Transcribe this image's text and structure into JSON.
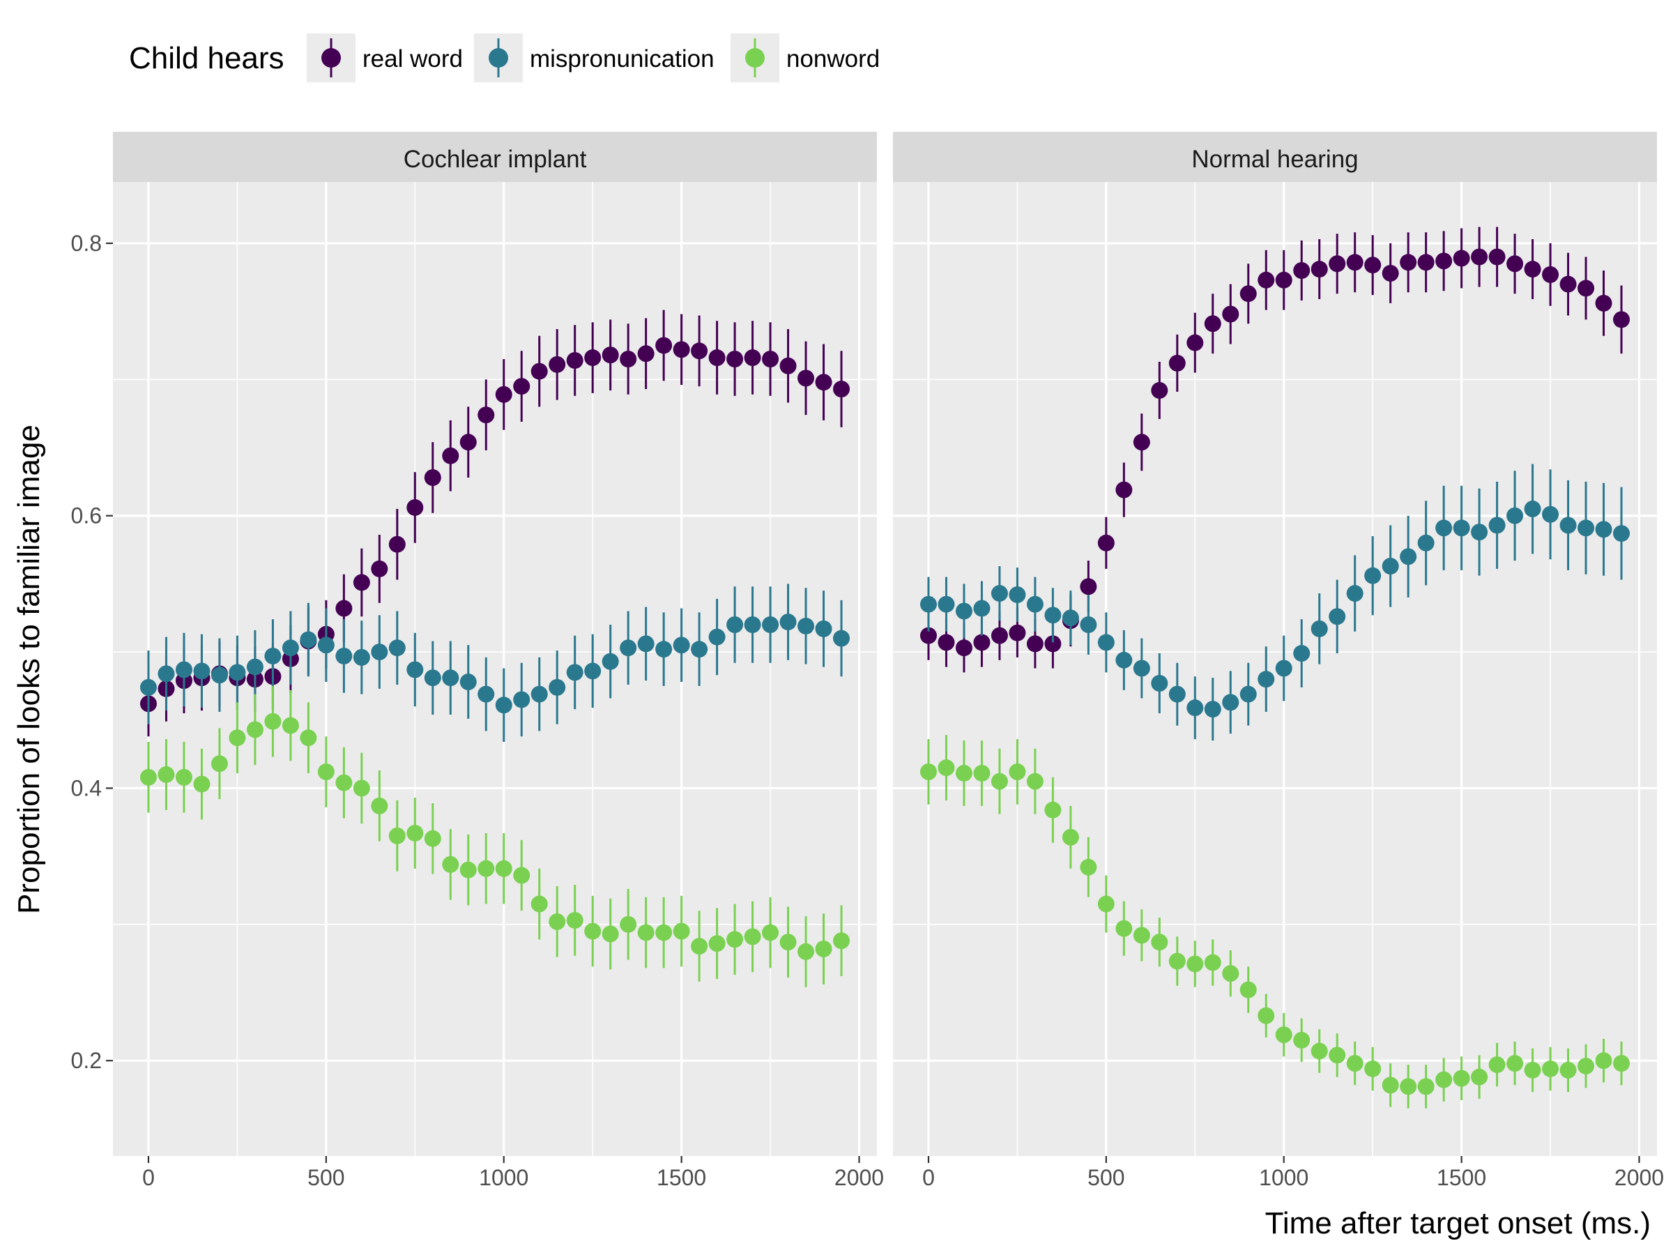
{
  "chart_data": {
    "type": "scatter",
    "ylabel": "Proportion of looks to familiar image",
    "xlabel": "Time after target onset (ms.)",
    "xlim": [
      -100,
      2050
    ],
    "ylim": [
      0.13,
      0.845
    ],
    "x_ticks": [
      0,
      500,
      1000,
      1500,
      2000
    ],
    "y_ticks": [
      0.2,
      0.4,
      0.6,
      0.8
    ],
    "grid": true,
    "legend": {
      "title": "Child hears",
      "placement": "top-left"
    },
    "x": [
      0,
      50,
      100,
      150,
      200,
      250,
      300,
      350,
      400,
      450,
      500,
      550,
      600,
      650,
      700,
      750,
      800,
      850,
      900,
      950,
      1000,
      1050,
      1100,
      1150,
      1200,
      1250,
      1300,
      1350,
      1400,
      1450,
      1500,
      1550,
      1600,
      1650,
      1700,
      1750,
      1800,
      1850,
      1900,
      1950
    ],
    "facets": [
      {
        "label": "Cochlear implant",
        "series": [
          {
            "name": "real word",
            "color": "#440154",
            "y": [
              0.462,
              0.473,
              0.479,
              0.481,
              0.484,
              0.481,
              0.48,
              0.482,
              0.495,
              0.508,
              0.513,
              0.532,
              0.551,
              0.561,
              0.579,
              0.606,
              0.628,
              0.644,
              0.654,
              0.674,
              0.689,
              0.695,
              0.706,
              0.711,
              0.714,
              0.716,
              0.718,
              0.715,
              0.719,
              0.725,
              0.722,
              0.721,
              0.716,
              0.715,
              0.716,
              0.715,
              0.71,
              0.701,
              0.698,
              0.693
            ],
            "err": [
              0.024,
              0.024,
              0.024,
              0.024,
              0.024,
              0.024,
              0.024,
              0.024,
              0.025,
              0.025,
              0.025,
              0.025,
              0.025,
              0.025,
              0.026,
              0.026,
              0.026,
              0.026,
              0.026,
              0.026,
              0.026,
              0.026,
              0.026,
              0.026,
              0.026,
              0.026,
              0.026,
              0.026,
              0.026,
              0.026,
              0.026,
              0.026,
              0.027,
              0.027,
              0.027,
              0.027,
              0.027,
              0.027,
              0.028,
              0.028
            ]
          },
          {
            "name": "mispronunication",
            "color": "#2A788E",
            "y": [
              0.474,
              0.484,
              0.487,
              0.486,
              0.483,
              0.485,
              0.489,
              0.497,
              0.503,
              0.509,
              0.505,
              0.497,
              0.496,
              0.5,
              0.503,
              0.487,
              0.481,
              0.481,
              0.478,
              0.469,
              0.461,
              0.465,
              0.469,
              0.474,
              0.485,
              0.486,
              0.493,
              0.503,
              0.506,
              0.502,
              0.505,
              0.502,
              0.511,
              0.52,
              0.52,
              0.52,
              0.522,
              0.519,
              0.517,
              0.51
            ],
            "err": [
              0.027,
              0.027,
              0.027,
              0.027,
              0.027,
              0.027,
              0.027,
              0.027,
              0.027,
              0.027,
              0.027,
              0.027,
              0.027,
              0.027,
              0.027,
              0.027,
              0.027,
              0.027,
              0.027,
              0.027,
              0.027,
              0.027,
              0.027,
              0.027,
              0.027,
              0.027,
              0.027,
              0.027,
              0.027,
              0.027,
              0.027,
              0.027,
              0.028,
              0.028,
              0.028,
              0.028,
              0.028,
              0.028,
              0.028,
              0.028
            ]
          },
          {
            "name": "nonword",
            "color": "#7AD151",
            "y": [
              0.408,
              0.41,
              0.408,
              0.403,
              0.418,
              0.437,
              0.443,
              0.449,
              0.446,
              0.437,
              0.412,
              0.404,
              0.4,
              0.387,
              0.365,
              0.367,
              0.363,
              0.344,
              0.34,
              0.341,
              0.341,
              0.336,
              0.315,
              0.302,
              0.303,
              0.295,
              0.293,
              0.3,
              0.294,
              0.294,
              0.295,
              0.284,
              0.286,
              0.289,
              0.291,
              0.294,
              0.287,
              0.28,
              0.282,
              0.288
            ],
            "err": [
              0.026,
              0.026,
              0.026,
              0.026,
              0.026,
              0.026,
              0.026,
              0.026,
              0.026,
              0.026,
              0.026,
              0.026,
              0.026,
              0.026,
              0.026,
              0.026,
              0.026,
              0.026,
              0.026,
              0.026,
              0.026,
              0.026,
              0.026,
              0.026,
              0.026,
              0.026,
              0.026,
              0.026,
              0.026,
              0.026,
              0.026,
              0.026,
              0.026,
              0.026,
              0.026,
              0.026,
              0.026,
              0.026,
              0.026,
              0.026
            ]
          }
        ]
      },
      {
        "label": "Normal hearing",
        "series": [
          {
            "name": "real word",
            "color": "#440154",
            "y": [
              0.512,
              0.507,
              0.503,
              0.507,
              0.512,
              0.514,
              0.506,
              0.506,
              0.523,
              0.548,
              0.58,
              0.619,
              0.654,
              0.692,
              0.712,
              0.727,
              0.741,
              0.748,
              0.763,
              0.773,
              0.773,
              0.78,
              0.781,
              0.785,
              0.786,
              0.784,
              0.778,
              0.786,
              0.786,
              0.787,
              0.789,
              0.79,
              0.79,
              0.785,
              0.781,
              0.777,
              0.77,
              0.767,
              0.756,
              0.744
            ],
            "err": [
              0.018,
              0.018,
              0.018,
              0.018,
              0.018,
              0.018,
              0.018,
              0.018,
              0.019,
              0.019,
              0.019,
              0.02,
              0.021,
              0.021,
              0.021,
              0.022,
              0.022,
              0.022,
              0.022,
              0.022,
              0.022,
              0.022,
              0.022,
              0.022,
              0.022,
              0.022,
              0.022,
              0.022,
              0.022,
              0.022,
              0.022,
              0.022,
              0.022,
              0.022,
              0.022,
              0.023,
              0.023,
              0.023,
              0.024,
              0.025
            ]
          },
          {
            "name": "mispronunication",
            "color": "#2A788E",
            "y": [
              0.535,
              0.535,
              0.53,
              0.532,
              0.543,
              0.542,
              0.535,
              0.527,
              0.525,
              0.52,
              0.507,
              0.494,
              0.488,
              0.477,
              0.469,
              0.459,
              0.458,
              0.463,
              0.469,
              0.48,
              0.488,
              0.499,
              0.517,
              0.526,
              0.543,
              0.556,
              0.563,
              0.57,
              0.58,
              0.591,
              0.591,
              0.588,
              0.593,
              0.6,
              0.605,
              0.601,
              0.593,
              0.591,
              0.59,
              0.587
            ],
            "err": [
              0.02,
              0.02,
              0.02,
              0.02,
              0.02,
              0.02,
              0.02,
              0.02,
              0.02,
              0.022,
              0.022,
              0.022,
              0.022,
              0.022,
              0.023,
              0.023,
              0.023,
              0.023,
              0.023,
              0.024,
              0.024,
              0.025,
              0.026,
              0.027,
              0.028,
              0.029,
              0.03,
              0.03,
              0.031,
              0.031,
              0.031,
              0.032,
              0.032,
              0.033,
              0.033,
              0.033,
              0.033,
              0.034,
              0.034,
              0.034
            ]
          },
          {
            "name": "nonword",
            "color": "#7AD151",
            "y": [
              0.412,
              0.415,
              0.411,
              0.411,
              0.405,
              0.412,
              0.405,
              0.384,
              0.364,
              0.342,
              0.315,
              0.297,
              0.292,
              0.287,
              0.273,
              0.271,
              0.272,
              0.264,
              0.252,
              0.233,
              0.219,
              0.215,
              0.207,
              0.204,
              0.198,
              0.194,
              0.182,
              0.181,
              0.181,
              0.186,
              0.187,
              0.188,
              0.197,
              0.198,
              0.193,
              0.194,
              0.193,
              0.196,
              0.2,
              0.198
            ],
            "err": [
              0.024,
              0.024,
              0.024,
              0.024,
              0.024,
              0.024,
              0.024,
              0.024,
              0.023,
              0.022,
              0.021,
              0.02,
              0.019,
              0.018,
              0.018,
              0.017,
              0.017,
              0.017,
              0.017,
              0.016,
              0.016,
              0.016,
              0.016,
              0.016,
              0.016,
              0.016,
              0.016,
              0.016,
              0.016,
              0.016,
              0.016,
              0.016,
              0.016,
              0.016,
              0.016,
              0.016,
              0.016,
              0.016,
              0.016,
              0.016
            ]
          }
        ]
      }
    ]
  }
}
